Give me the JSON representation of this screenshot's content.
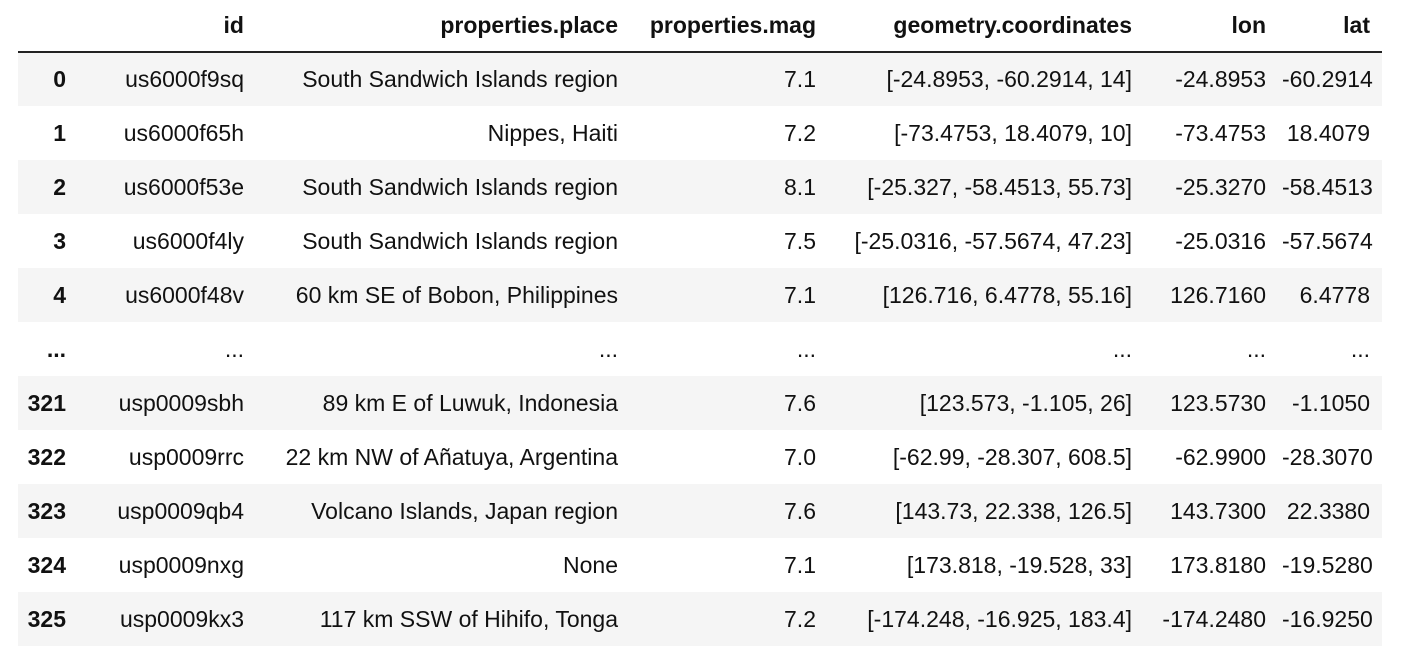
{
  "table": {
    "columns": {
      "index": "",
      "id": "id",
      "place": "properties.place",
      "mag": "properties.mag",
      "coordinates": "geometry.coordinates",
      "lon": "lon",
      "lat": "lat"
    },
    "rows": [
      {
        "index": "0",
        "id": "us6000f9sq",
        "place": "South Sandwich Islands region",
        "mag": "7.1",
        "coordinates": "[-24.8953, -60.2914, 14]",
        "lon": "-24.8953",
        "lat": "-60.2914"
      },
      {
        "index": "1",
        "id": "us6000f65h",
        "place": "Nippes, Haiti",
        "mag": "7.2",
        "coordinates": "[-73.4753, 18.4079, 10]",
        "lon": "-73.4753",
        "lat": "18.4079"
      },
      {
        "index": "2",
        "id": "us6000f53e",
        "place": "South Sandwich Islands region",
        "mag": "8.1",
        "coordinates": "[-25.327, -58.4513, 55.73]",
        "lon": "-25.3270",
        "lat": "-58.4513"
      },
      {
        "index": "3",
        "id": "us6000f4ly",
        "place": "South Sandwich Islands region",
        "mag": "7.5",
        "coordinates": "[-25.0316, -57.5674, 47.23]",
        "lon": "-25.0316",
        "lat": "-57.5674"
      },
      {
        "index": "4",
        "id": "us6000f48v",
        "place": "60 km SE of Bobon, Philippines",
        "mag": "7.1",
        "coordinates": "[126.716, 6.4778, 55.16]",
        "lon": "126.7160",
        "lat": "6.4778"
      },
      {
        "index": "...",
        "id": "...",
        "place": "...",
        "mag": "...",
        "coordinates": "...",
        "lon": "...",
        "lat": "..."
      },
      {
        "index": "321",
        "id": "usp0009sbh",
        "place": "89 km E of Luwuk, Indonesia",
        "mag": "7.6",
        "coordinates": "[123.573, -1.105, 26]",
        "lon": "123.5730",
        "lat": "-1.1050"
      },
      {
        "index": "322",
        "id": "usp0009rrc",
        "place": "22 km NW of Añatuya, Argentina",
        "mag": "7.0",
        "coordinates": "[-62.99, -28.307, 608.5]",
        "lon": "-62.9900",
        "lat": "-28.3070"
      },
      {
        "index": "323",
        "id": "usp0009qb4",
        "place": "Volcano Islands, Japan region",
        "mag": "7.6",
        "coordinates": "[143.73, 22.338, 126.5]",
        "lon": "143.7300",
        "lat": "22.3380"
      },
      {
        "index": "324",
        "id": "usp0009nxg",
        "place": "None",
        "mag": "7.1",
        "coordinates": "[173.818, -19.528, 33]",
        "lon": "173.8180",
        "lat": "-19.5280"
      },
      {
        "index": "325",
        "id": "usp0009kx3",
        "place": "117 km SSW of Hihifo, Tonga",
        "mag": "7.2",
        "coordinates": "[-174.248, -16.925, 183.4]",
        "lon": "-174.2480",
        "lat": "-16.9250"
      }
    ]
  }
}
